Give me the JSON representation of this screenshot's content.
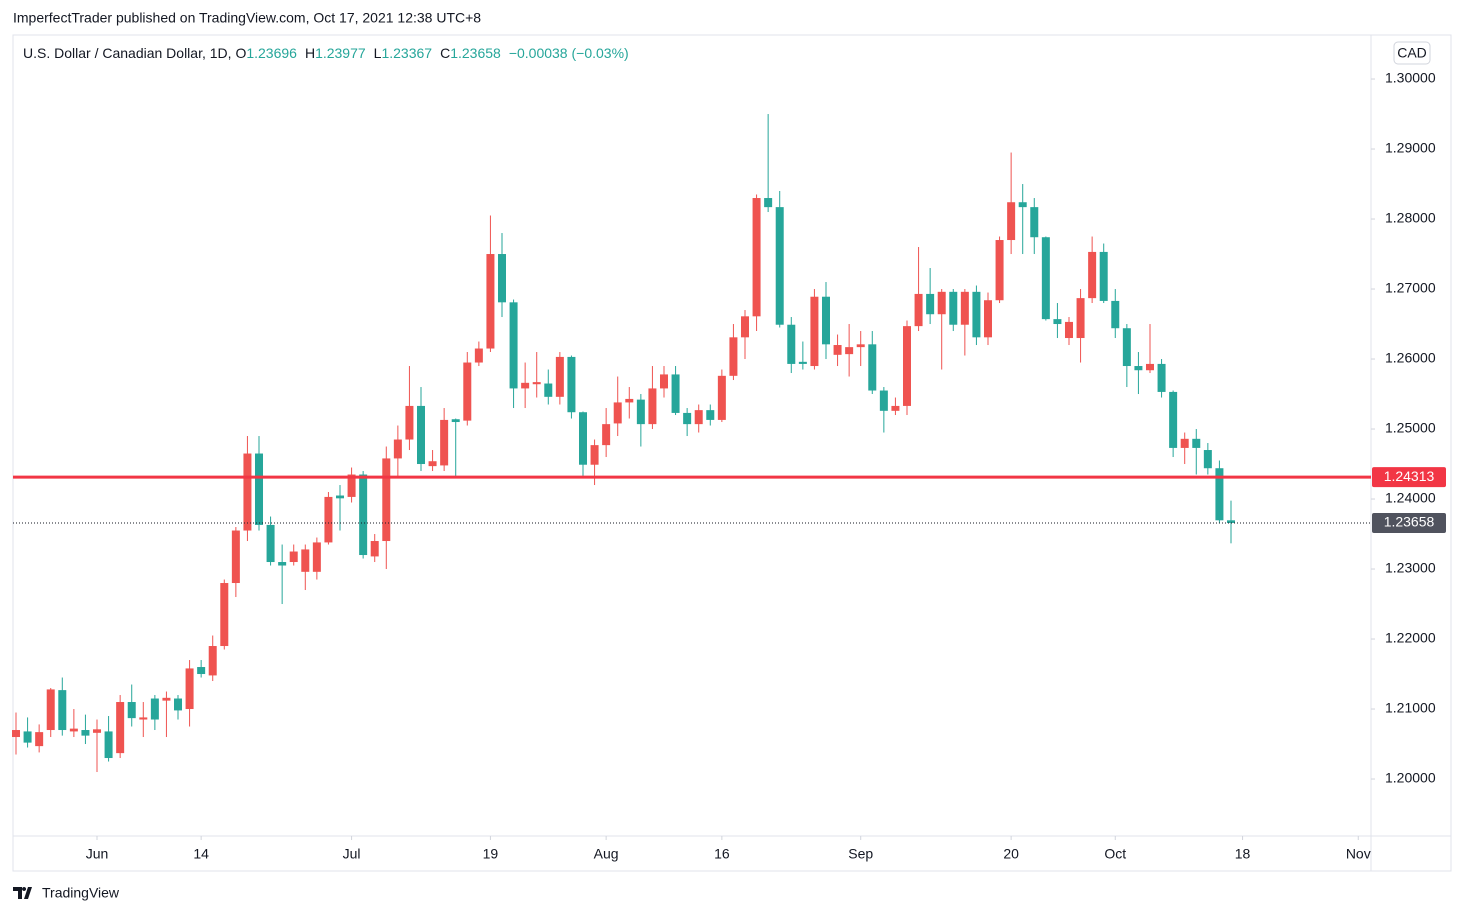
{
  "chart_data": {
    "type": "candlestick",
    "published": "ImperfectTrader published on TradingView.com, Oct 17, 2021 12:38 UTC+8",
    "symbol": "U.S. Dollar / Canadian Dollar, 1D, ",
    "ohlc_labels": [
      "O",
      "H",
      "L",
      "C"
    ],
    "change": "−0.00038 (−0.03%)",
    "currency": "CAD",
    "brand": "TradingView",
    "up_color": "#ef5350",
    "down_color": "#26a69a",
    "open": [
      1.206,
      1.2068,
      1.2047,
      1.207,
      1.2127,
      1.2068,
      1.207,
      1.2066,
      1.2068,
      1.2037,
      1.211,
      1.2085,
      1.2115,
      1.2112,
      1.2115,
      1.21,
      1.216,
      1.2148,
      1.219,
      1.228,
      1.2355,
      1.2465,
      1.2363,
      1.231,
      1.231,
      1.2296,
      1.2296,
      1.2338,
      1.2405,
      1.2403,
      1.2435,
      1.2318,
      1.234,
      1.2458,
      1.2485,
      1.2533,
      1.2447,
      1.2448,
      1.2514,
      1.2512,
      1.2595,
      1.2615,
      1.275,
      1.2681,
      1.2558,
      1.2564,
      1.2565,
      1.2546,
      1.2603,
      1.2524,
      1.2449,
      1.2477,
      1.2508,
      1.2538,
      1.2542,
      1.2507,
      1.2558,
      1.2578,
      1.2523,
      1.2507,
      1.2527,
      1.2513,
      1.2576,
      1.2631,
      1.2661,
      1.283,
      1.2817,
      1.2649,
      1.2596,
      1.259,
      1.2689,
      1.2606,
      1.2607,
      1.2617,
      1.2621,
      1.2555,
      1.2526,
      1.2533,
      1.2647,
      1.2693,
      1.2664,
      1.2696,
      1.2649,
      1.2696,
      1.2631,
      1.2684,
      1.277,
      1.2824,
      1.2817,
      1.2774,
      1.2657,
      1.263,
      1.263,
      1.2687,
      1.2753,
      1.2683,
      1.2644,
      1.259,
      1.2584,
      1.2593,
      1.2553,
      1.2473,
      1.2486,
      1.247,
      1.2444,
      1.23696
    ],
    "high": [
      1.2095,
      1.2088,
      1.2078,
      1.213,
      1.2145,
      1.21,
      1.2092,
      1.2085,
      1.209,
      1.212,
      1.2135,
      1.211,
      1.212,
      1.2125,
      1.212,
      1.217,
      1.217,
      1.2205,
      1.2285,
      1.236,
      1.249,
      1.249,
      1.2375,
      1.2335,
      1.2335,
      1.2335,
      1.2345,
      1.241,
      1.242,
      1.2445,
      1.244,
      1.235,
      1.2475,
      1.2505,
      1.259,
      1.256,
      1.247,
      1.253,
      1.2515,
      1.261,
      1.2625,
      1.2805,
      1.278,
      1.2685,
      1.2595,
      1.261,
      1.2585,
      1.261,
      1.2605,
      1.2525,
      1.2485,
      1.253,
      1.2575,
      1.256,
      1.255,
      1.259,
      1.259,
      1.259,
      1.253,
      1.2535,
      1.2535,
      1.2585,
      1.265,
      1.267,
      1.2835,
      1.295,
      1.284,
      1.266,
      1.2625,
      1.27,
      1.271,
      1.2635,
      1.265,
      1.264,
      1.264,
      1.256,
      1.2545,
      1.2655,
      1.276,
      1.273,
      1.27,
      1.27,
      1.27,
      1.2705,
      1.2695,
      1.2775,
      1.2895,
      1.285,
      1.283,
      1.2775,
      1.268,
      1.266,
      1.27,
      1.2775,
      1.2765,
      1.27,
      1.265,
      1.261,
      1.265,
      1.26,
      1.2555,
      1.2495,
      1.25,
      1.248,
      1.2455,
      1.23977
    ],
    "low": [
      1.2035,
      1.2045,
      1.2038,
      1.206,
      1.2062,
      1.206,
      1.205,
      1.201,
      1.2025,
      1.203,
      1.2075,
      1.206,
      1.207,
      1.206,
      1.2085,
      1.2075,
      1.2145,
      1.214,
      1.2185,
      1.226,
      1.234,
      1.2355,
      1.2305,
      1.225,
      1.2305,
      1.227,
      1.2285,
      1.2335,
      1.2355,
      1.2395,
      1.2315,
      1.231,
      1.23,
      1.243,
      1.247,
      1.244,
      1.244,
      1.244,
      1.243,
      1.2505,
      1.259,
      1.261,
      1.266,
      1.253,
      1.253,
      1.2545,
      1.2535,
      1.2535,
      1.2515,
      1.243,
      1.242,
      1.246,
      1.249,
      1.2515,
      1.2475,
      1.25,
      1.2545,
      1.252,
      1.249,
      1.2495,
      1.2505,
      1.251,
      1.257,
      1.26,
      1.264,
      1.281,
      1.2645,
      1.258,
      1.2585,
      1.2585,
      1.26,
      1.259,
      1.2575,
      1.259,
      1.255,
      1.2495,
      1.252,
      1.252,
      1.264,
      1.265,
      1.2585,
      1.264,
      1.2605,
      1.262,
      1.262,
      1.268,
      1.275,
      1.275,
      1.275,
      1.2655,
      1.263,
      1.262,
      1.2595,
      1.268,
      1.268,
      1.263,
      1.256,
      1.255,
      1.258,
      1.2545,
      1.246,
      1.245,
      1.2435,
      1.2435,
      1.2365,
      1.23367
    ],
    "close": [
      1.207,
      1.2052,
      1.2067,
      1.2128,
      1.207,
      1.2072,
      1.2062,
      1.2071,
      1.203,
      1.211,
      1.2087,
      1.2088,
      1.2085,
      1.2116,
      1.2098,
      1.2158,
      1.215,
      1.219,
      1.228,
      1.2355,
      1.2465,
      1.2363,
      1.231,
      1.2305,
      1.2325,
      1.2328,
      1.2338,
      1.2403,
      1.2401,
      1.2435,
      1.232,
      1.234,
      1.2458,
      1.2485,
      1.2533,
      1.245,
      1.2454,
      1.2513,
      1.251,
      1.2595,
      1.2615,
      1.275,
      1.2681,
      1.2558,
      1.2566,
      1.2567,
      1.2546,
      1.2603,
      1.2524,
      1.2449,
      1.2477,
      1.2507,
      1.2538,
      1.2543,
      1.2507,
      1.2558,
      1.2578,
      1.2523,
      1.2507,
      1.2527,
      1.2513,
      1.2576,
      1.2631,
      1.2661,
      1.283,
      1.2817,
      1.2649,
      1.2593,
      1.2593,
      1.2689,
      1.2621,
      1.262,
      1.2617,
      1.2621,
      1.2555,
      1.2526,
      1.2533,
      1.2647,
      1.2693,
      1.2664,
      1.2696,
      1.2649,
      1.2696,
      1.2631,
      1.2684,
      1.277,
      1.2824,
      1.2817,
      1.2774,
      1.2657,
      1.265,
      1.2653,
      1.2687,
      1.2753,
      1.2683,
      1.2644,
      1.259,
      1.2584,
      1.2593,
      1.2553,
      1.2473,
      1.2486,
      1.2473,
      1.2444,
      1.23696,
      1.23658
    ],
    "xlim": [
      -0.26,
      117.1
    ],
    "xticks": [
      {
        "value": 7,
        "label": "Jun"
      },
      {
        "value": 16,
        "label": "14"
      },
      {
        "value": 29,
        "label": "Jul"
      },
      {
        "value": 41,
        "label": "19"
      },
      {
        "value": 51,
        "label": "Aug"
      },
      {
        "value": 61,
        "label": "16"
      },
      {
        "value": 73,
        "label": "Sep"
      },
      {
        "value": 86,
        "label": "20"
      },
      {
        "value": 95,
        "label": "Oct"
      },
      {
        "value": 106,
        "label": "18"
      },
      {
        "value": 116,
        "label": "Nov"
      }
    ],
    "ylim": [
      1.19186,
      1.30629
    ],
    "yticks": [
      {
        "value": 1.2,
        "label": "1.20000"
      },
      {
        "value": 1.21,
        "label": "1.21000"
      },
      {
        "value": 1.22,
        "label": "1.22000"
      },
      {
        "value": 1.23,
        "label": "1.23000"
      },
      {
        "value": 1.24,
        "label": "1.24000"
      },
      {
        "value": 1.25,
        "label": "1.25000"
      },
      {
        "value": 1.26,
        "label": "1.26000"
      },
      {
        "value": 1.27,
        "label": "1.27000"
      },
      {
        "value": 1.28,
        "label": "1.28000"
      },
      {
        "value": 1.29,
        "label": "1.29000"
      },
      {
        "value": 1.3,
        "label": "1.30000"
      }
    ],
    "level_line": {
      "value": 1.24313,
      "color": "#f23645"
    }
  }
}
